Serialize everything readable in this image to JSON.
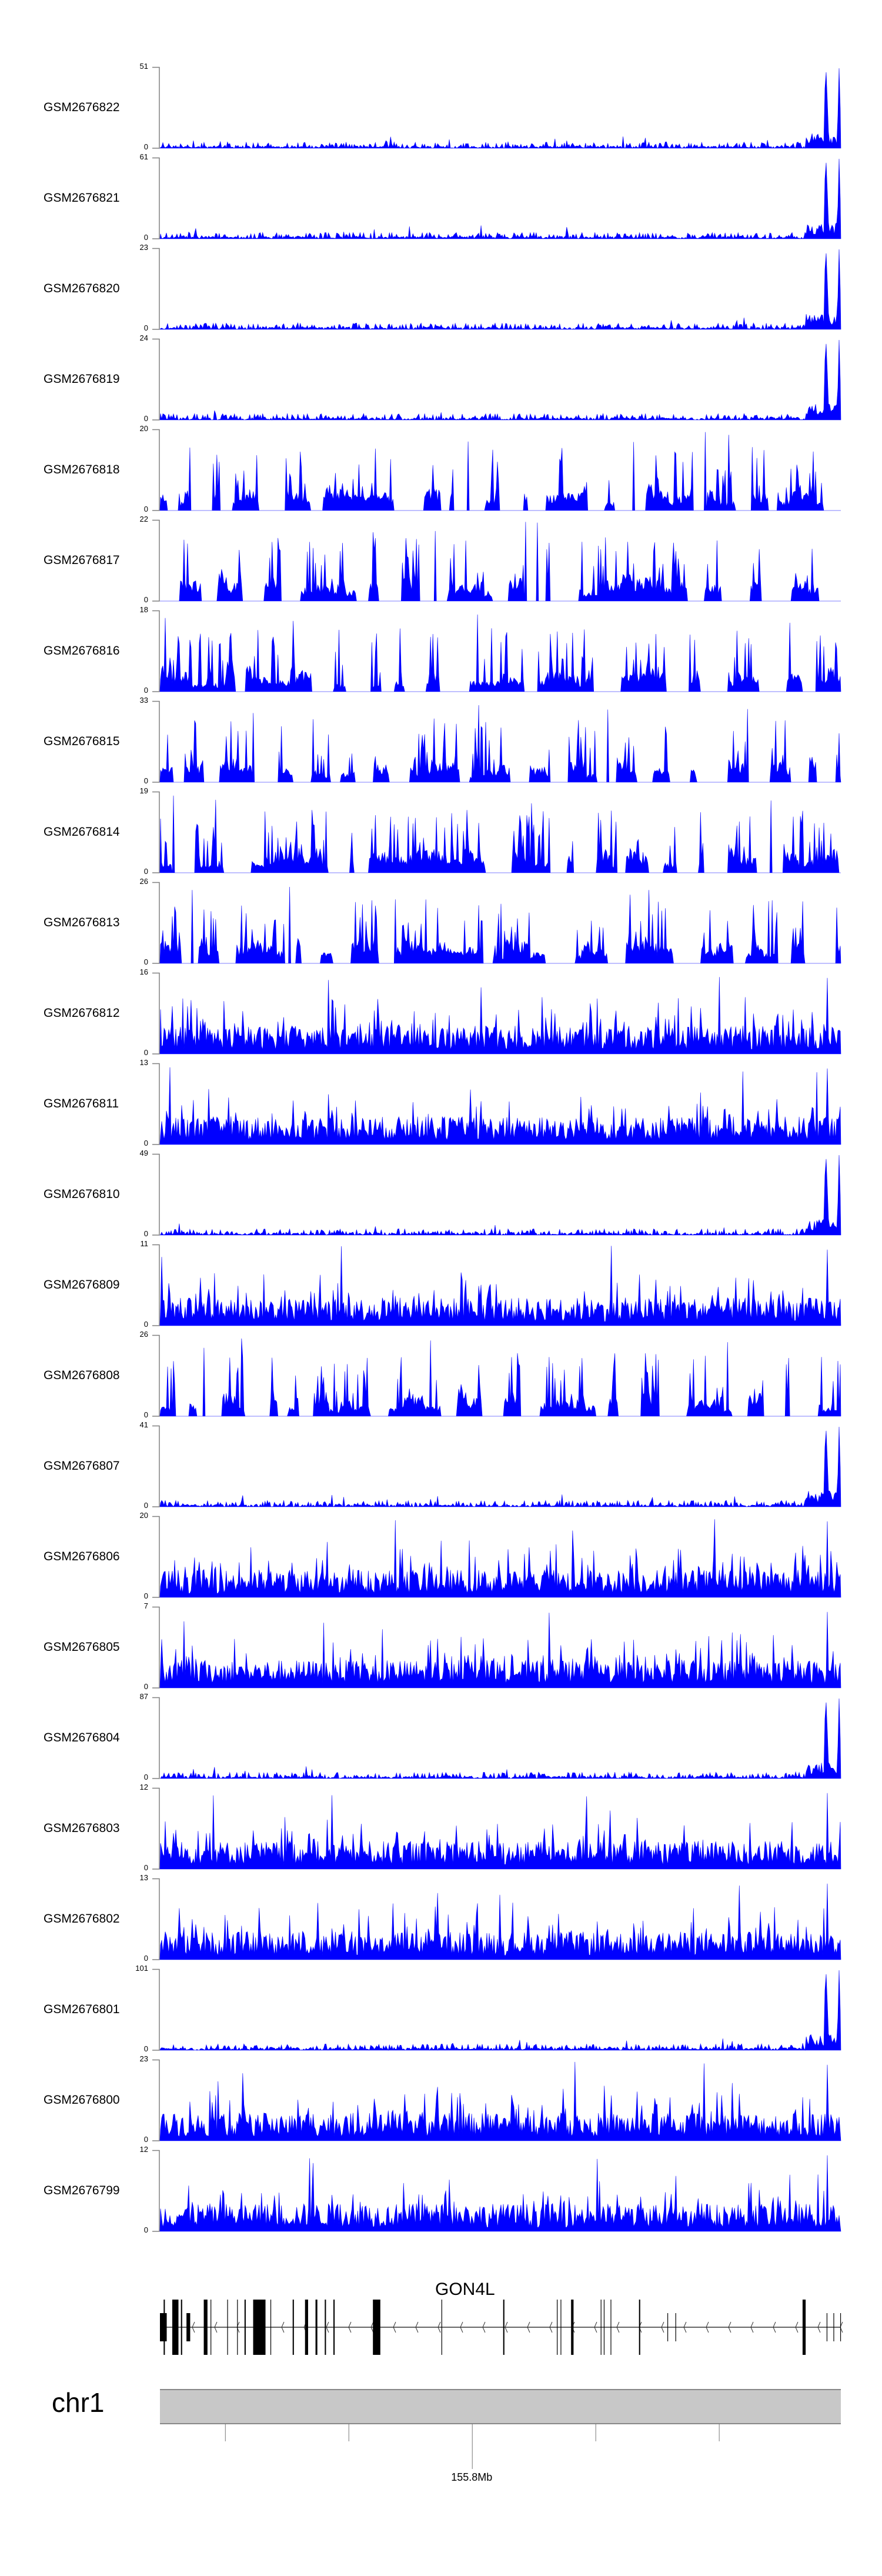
{
  "chart_data": {
    "type": "area",
    "title": "",
    "fill_color": "#0000FF",
    "axis_color": "#808080",
    "region": {
      "chromosome": "chr1",
      "start_mb": 155.7494,
      "end_mb": 155.8597
    },
    "tracks": [
      {
        "name": "GSM2676822",
        "ymin": "0",
        "ymax": "51",
        "profile": "tail"
      },
      {
        "name": "GSM2676821",
        "ymin": "0",
        "ymax": "61",
        "profile": "tail"
      },
      {
        "name": "GSM2676820",
        "ymin": "0",
        "ymax": "23",
        "profile": "tail"
      },
      {
        "name": "GSM2676819",
        "ymin": "0",
        "ymax": "24",
        "profile": "tail"
      },
      {
        "name": "GSM2676818",
        "ymin": "0",
        "ymax": "20",
        "profile": "spiky"
      },
      {
        "name": "GSM2676817",
        "ymin": "0",
        "ymax": "22",
        "profile": "spiky"
      },
      {
        "name": "GSM2676816",
        "ymin": "0",
        "ymax": "18",
        "profile": "spiky"
      },
      {
        "name": "GSM2676815",
        "ymin": "0",
        "ymax": "33",
        "profile": "spiky"
      },
      {
        "name": "GSM2676814",
        "ymin": "0",
        "ymax": "19",
        "profile": "spiky"
      },
      {
        "name": "GSM2676813",
        "ymin": "0",
        "ymax": "26",
        "profile": "spiky"
      },
      {
        "name": "GSM2676812",
        "ymin": "0",
        "ymax": "16",
        "profile": "dense"
      },
      {
        "name": "GSM2676811",
        "ymin": "0",
        "ymax": "13",
        "profile": "dense"
      },
      {
        "name": "GSM2676810",
        "ymin": "0",
        "ymax": "49",
        "profile": "tail"
      },
      {
        "name": "GSM2676809",
        "ymin": "0",
        "ymax": "11",
        "profile": "dense"
      },
      {
        "name": "GSM2676808",
        "ymin": "0",
        "ymax": "26",
        "profile": "spiky"
      },
      {
        "name": "GSM2676807",
        "ymin": "0",
        "ymax": "41",
        "profile": "tail"
      },
      {
        "name": "GSM2676806",
        "ymin": "0",
        "ymax": "20",
        "profile": "dense"
      },
      {
        "name": "GSM2676805",
        "ymin": "0",
        "ymax": "7",
        "profile": "dense"
      },
      {
        "name": "GSM2676804",
        "ymin": "0",
        "ymax": "87",
        "profile": "tail"
      },
      {
        "name": "GSM2676803",
        "ymin": "0",
        "ymax": "12",
        "profile": "dense"
      },
      {
        "name": "GSM2676802",
        "ymin": "0",
        "ymax": "13",
        "profile": "dense"
      },
      {
        "name": "GSM2676801",
        "ymin": "0",
        "ymax": "101",
        "profile": "tail"
      },
      {
        "name": "GSM2676800",
        "ymin": "0",
        "ymax": "23",
        "profile": "dense"
      },
      {
        "name": "GSM2676799",
        "ymin": "0",
        "ymax": "12",
        "profile": "dense"
      }
    ],
    "gene": {
      "name": "GON4L",
      "strand": "-",
      "start_mb": 155.7494,
      "end_mb": 155.8597,
      "exons": [
        [
          155.7494,
          155.7505,
          "half"
        ],
        [
          155.75,
          155.7502,
          "full"
        ],
        [
          155.7514,
          155.7524,
          "full"
        ],
        [
          155.7528,
          155.753,
          "full"
        ],
        [
          155.7537,
          155.7543,
          "half"
        ],
        [
          155.7565,
          155.7571,
          "full"
        ],
        [
          155.7576,
          155.7577,
          "full"
        ],
        [
          155.7603,
          155.7604,
          "full"
        ],
        [
          155.7619,
          155.762,
          "full"
        ],
        [
          155.7631,
          155.7633,
          "full"
        ],
        [
          155.7645,
          155.7665,
          "full"
        ],
        [
          155.7673,
          155.7674,
          "full"
        ],
        [
          155.7709,
          155.7711,
          "full"
        ],
        [
          155.7729,
          155.7734,
          "full"
        ],
        [
          155.7746,
          155.7749,
          "full"
        ],
        [
          155.7761,
          155.7763,
          "full"
        ],
        [
          155.7775,
          155.7777,
          "full"
        ],
        [
          155.7839,
          155.7851,
          "full"
        ],
        [
          155.795,
          155.7951,
          "full"
        ],
        [
          155.805,
          155.8052,
          "full"
        ],
        [
          155.8137,
          155.8138,
          "full"
        ],
        [
          155.8143,
          155.8144,
          "full"
        ],
        [
          155.816,
          155.8164,
          "full"
        ],
        [
          155.8208,
          155.8209,
          "full"
        ],
        [
          155.8213,
          155.8214,
          "full"
        ],
        [
          155.8224,
          155.8225,
          "full"
        ],
        [
          155.827,
          155.8272,
          "full"
        ],
        [
          155.8316,
          155.8317,
          "half"
        ],
        [
          155.8329,
          155.833,
          "half"
        ],
        [
          155.8535,
          155.854,
          "full"
        ],
        [
          155.8574,
          155.8575,
          "half"
        ],
        [
          155.8585,
          155.8586,
          "half"
        ],
        [
          155.8596,
          155.8597,
          "half"
        ]
      ]
    },
    "ideogram": {
      "label": "chr1",
      "fill_color": "#C8C8C8"
    },
    "axis_ticks_mb": [
      155.76,
      155.78,
      155.8,
      155.82,
      155.84
    ],
    "axis_tick_label": "155.8Mb",
    "axis_tick_label_mb": 155.8
  }
}
